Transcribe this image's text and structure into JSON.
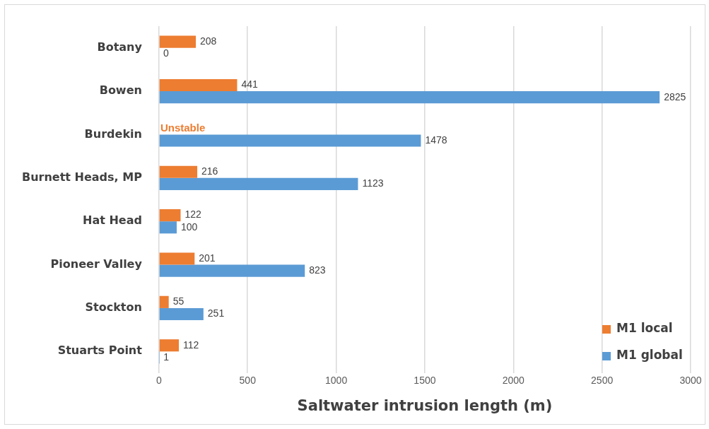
{
  "chart_data": {
    "type": "bar",
    "orientation": "horizontal",
    "xlabel": "Saltwater intrusion length (m)",
    "categories": [
      "Botany",
      "Bowen",
      "Burdekin",
      "Burnett Heads, MP",
      "Hat Head",
      "Pioneer Valley",
      "Stockton",
      "Stuarts Point"
    ],
    "series": [
      {
        "name": "M1 local",
        "color": "#ed7d31",
        "values": [
          208,
          441,
          null,
          216,
          122,
          201,
          55,
          112
        ],
        "value_labels": [
          "208",
          "441",
          "Unstable",
          "216",
          "122",
          "201",
          "55",
          "112"
        ]
      },
      {
        "name": "M1 global",
        "color": "#5b9bd5",
        "values": [
          0,
          2825,
          1478,
          1123,
          100,
          823,
          251,
          1
        ],
        "value_labels": [
          "0",
          "2825",
          "1478",
          "1123",
          "100",
          "823",
          "251",
          "1"
        ]
      }
    ],
    "xlim": [
      0,
      3000
    ],
    "xticks": [
      0,
      500,
      1000,
      1500,
      2000,
      2500,
      3000
    ],
    "grid": "x",
    "legend": "bottom right"
  }
}
